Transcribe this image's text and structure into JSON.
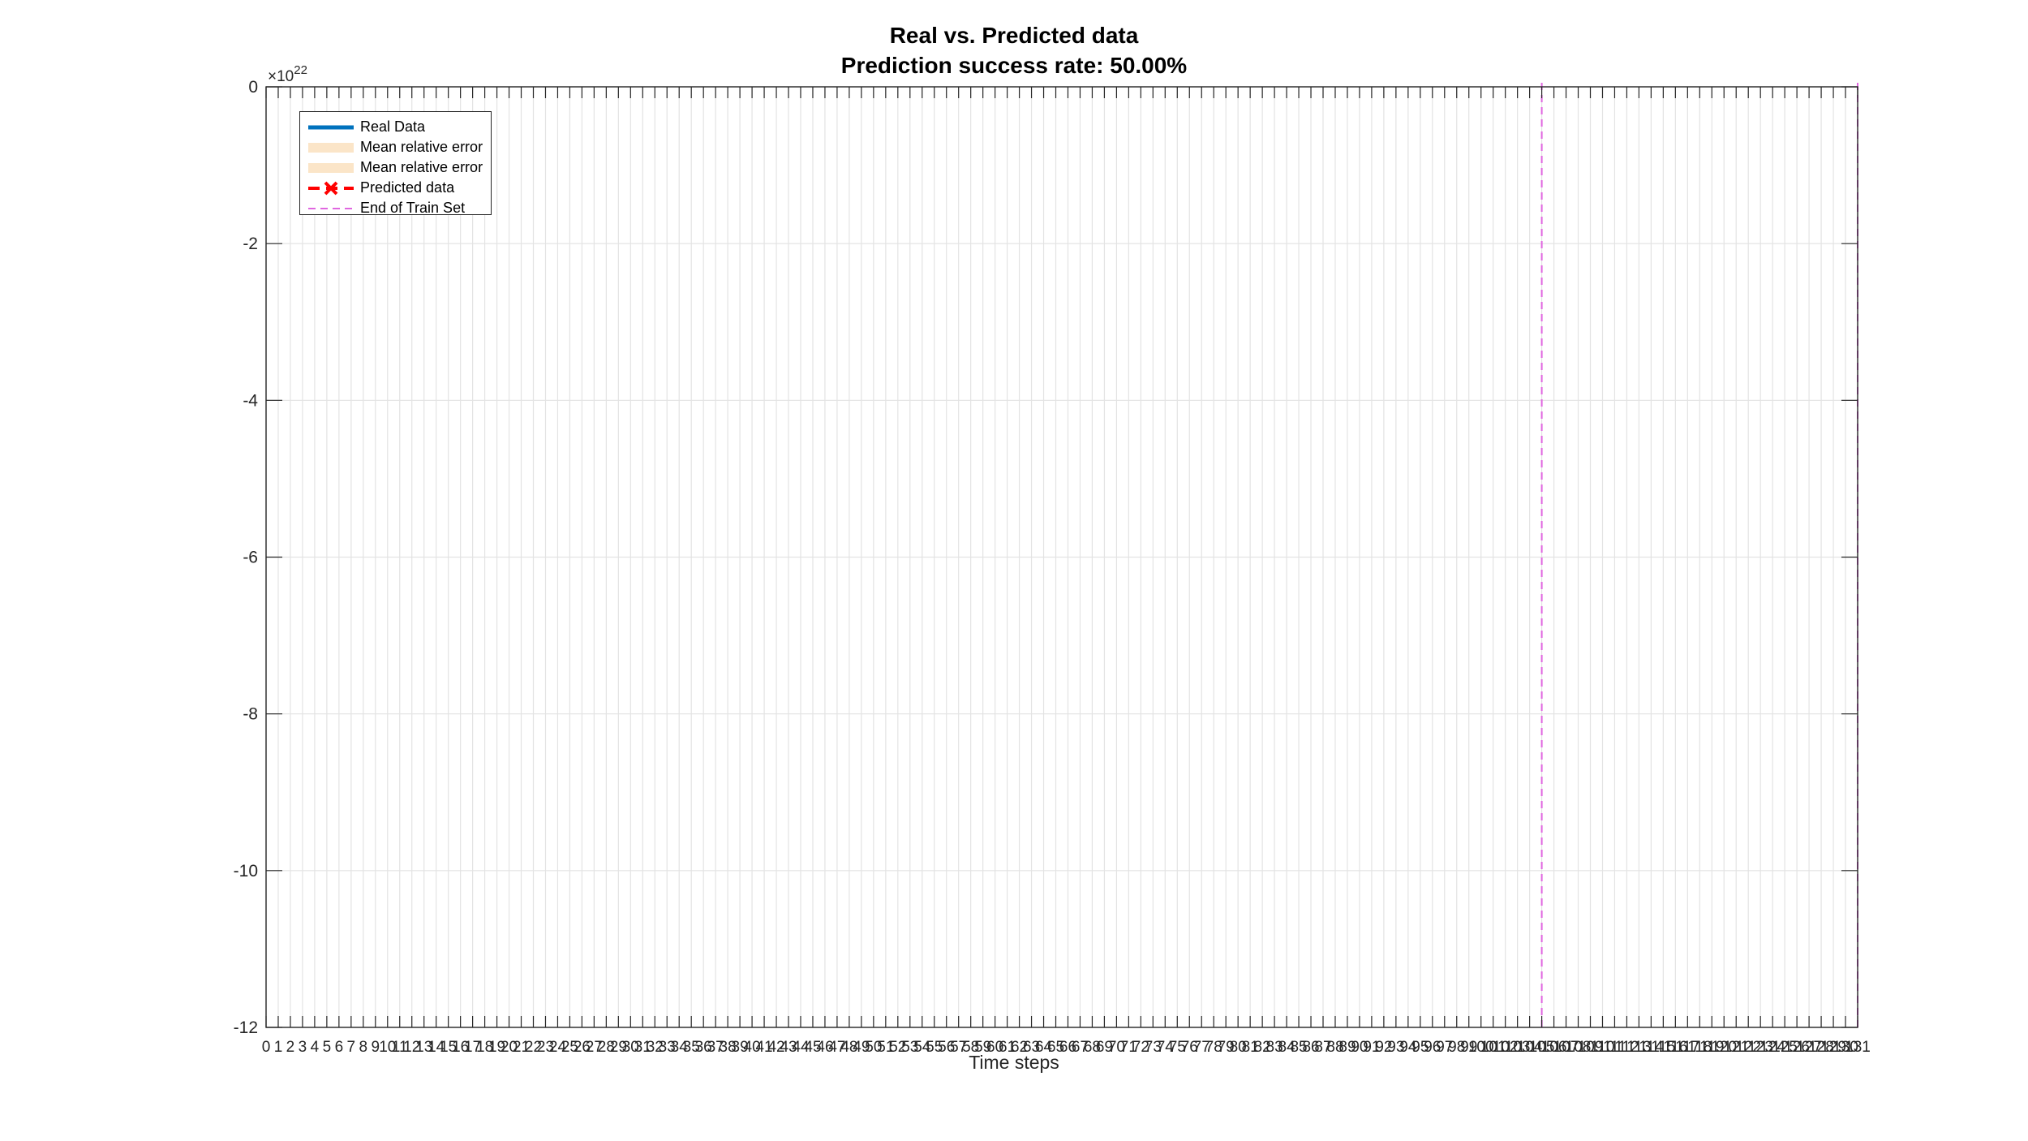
{
  "chart_data": {
    "type": "line",
    "title": "Real vs. Predicted data",
    "subtitle": "Prediction success rate: 50.00%",
    "xlabel": "Time steps",
    "ylabel": "",
    "y_exponent_label": "×10",
    "y_exponent": "22",
    "ylim": [
      -12,
      0
    ],
    "yticks": [
      0,
      -2,
      -4,
      -6,
      -8,
      -10,
      -12
    ],
    "xlim": [
      0,
      131
    ],
    "x_tick_values": [
      0,
      1,
      2,
      3,
      4,
      5,
      6,
      7,
      8,
      9,
      10,
      11,
      12,
      13,
      14,
      15,
      16,
      17,
      18,
      19,
      20,
      21,
      22,
      23,
      24,
      25,
      26,
      27,
      28,
      29,
      30,
      31,
      32,
      33,
      34,
      35,
      36,
      37,
      38,
      39,
      40,
      41,
      42,
      43,
      44,
      45,
      46,
      47,
      48,
      49,
      50,
      51,
      52,
      53,
      54,
      55,
      56,
      57,
      58,
      59,
      60,
      61,
      62,
      63,
      64,
      65,
      66,
      67,
      68,
      69,
      70,
      71,
      72,
      73,
      74,
      75,
      76,
      77,
      78,
      79,
      80,
      81,
      82,
      83,
      84,
      85,
      86,
      87,
      88,
      89,
      90,
      91,
      92,
      93,
      94,
      95,
      96,
      97,
      98,
      99,
      100,
      101,
      102,
      103,
      104,
      105,
      106,
      107,
      108,
      109,
      110,
      111,
      112,
      113,
      114,
      115,
      116,
      117,
      118,
      119,
      120,
      121,
      122,
      123,
      124,
      125,
      126,
      127,
      128,
      129,
      130,
      131
    ],
    "grid": true,
    "end_of_train_x": [
      105,
      131
    ],
    "legend_position": "top-left",
    "legend": [
      {
        "label": "Real Data",
        "style": "solid-line",
        "color": "#0072BD"
      },
      {
        "label": "Mean relative error",
        "style": "band",
        "color": "#FBE5C8"
      },
      {
        "label": "Mean relative error",
        "style": "band",
        "color": "#FBE5C8"
      },
      {
        "label": "Predicted data",
        "style": "dashed-x",
        "color": "#FF0000"
      },
      {
        "label": "End of Train Set",
        "style": "dashed-line",
        "color": "#E066E0"
      }
    ],
    "series": []
  }
}
